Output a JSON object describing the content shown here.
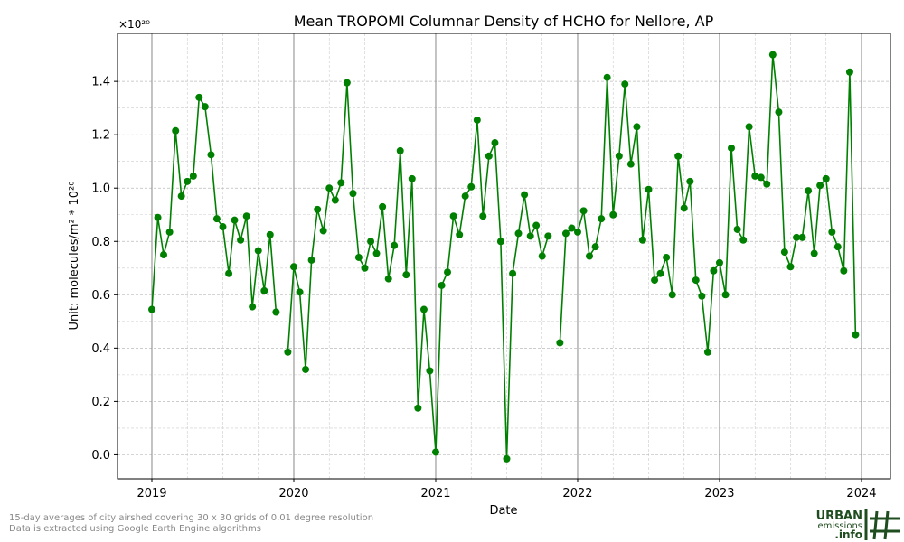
{
  "chart_data": {
    "type": "line",
    "title": "Mean TROPOMI Columnar Density of HCHO for Nellore, AP",
    "xlabel": "Date",
    "ylabel": "Unit: molecules/m² * 10²⁰",
    "y_multiplier": "×10²⁰",
    "x": [
      2019.0,
      2019.042,
      2019.083,
      2019.125,
      2019.167,
      2019.208,
      2019.25,
      2019.292,
      2019.333,
      2019.375,
      2019.417,
      2019.458,
      2019.5,
      2019.542,
      2019.583,
      2019.625,
      2019.667,
      2019.708,
      2019.75,
      2019.792,
      2019.833,
      2019.875,
      2019.917,
      2019.958,
      2020.0,
      2020.042,
      2020.083,
      2020.125,
      2020.167,
      2020.208,
      2020.25,
      2020.292,
      2020.333,
      2020.375,
      2020.417,
      2020.458,
      2020.5,
      2020.542,
      2020.583,
      2020.625,
      2020.667,
      2020.708,
      2020.75,
      2020.792,
      2020.833,
      2020.875,
      2020.917,
      2020.958,
      2021.0,
      2021.042,
      2021.083,
      2021.125,
      2021.167,
      2021.208,
      2021.25,
      2021.292,
      2021.333,
      2021.375,
      2021.417,
      2021.458,
      2021.5,
      2021.542,
      2021.583,
      2021.625,
      2021.667,
      2021.708,
      2021.75,
      2021.792,
      2021.833,
      2021.875,
      2021.917,
      2021.958,
      2022.0,
      2022.042,
      2022.083,
      2022.125,
      2022.167,
      2022.208,
      2022.25,
      2022.292,
      2022.333,
      2022.375,
      2022.417,
      2022.458,
      2022.5,
      2022.542,
      2022.583,
      2022.625,
      2022.667,
      2022.708,
      2022.75,
      2022.792,
      2022.833,
      2022.875,
      2022.917,
      2022.958,
      2023.0,
      2023.042,
      2023.083,
      2023.125,
      2023.167,
      2023.208,
      2023.25,
      2023.292,
      2023.333,
      2023.375,
      2023.417,
      2023.458,
      2023.5,
      2023.542,
      2023.583,
      2023.625,
      2023.667,
      2023.708,
      2023.75,
      2023.792,
      2023.833,
      2023.875,
      2023.917,
      2023.958
    ],
    "series": [
      {
        "name": "HCHO",
        "color": "#008000",
        "values": [
          0.545,
          0.89,
          0.75,
          0.835,
          1.215,
          0.97,
          1.025,
          1.045,
          1.34,
          1.305,
          1.125,
          0.885,
          0.855,
          0.68,
          0.88,
          0.805,
          0.895,
          0.555,
          0.765,
          0.615,
          0.825,
          0.535,
          null,
          0.385,
          0.705,
          0.61,
          0.32,
          0.73,
          0.92,
          0.84,
          1.0,
          0.955,
          1.02,
          1.395,
          0.98,
          0.74,
          0.7,
          0.8,
          0.755,
          0.93,
          0.66,
          0.785,
          1.14,
          0.675,
          1.035,
          0.175,
          0.545,
          0.315,
          0.01,
          0.635,
          0.685,
          0.895,
          0.825,
          0.97,
          1.005,
          1.255,
          0.895,
          1.12,
          1.17,
          0.8,
          -0.015,
          0.68,
          0.83,
          0.975,
          0.82,
          0.86,
          0.745,
          0.82,
          null,
          0.42,
          0.83,
          0.85,
          0.835,
          0.915,
          0.745,
          0.78,
          0.885,
          1.415,
          0.9,
          1.12,
          1.39,
          1.09,
          1.23,
          0.805,
          0.995,
          0.655,
          0.68,
          0.74,
          0.6,
          1.12,
          0.925,
          1.025,
          0.655,
          0.595,
          0.385,
          0.69,
          0.72,
          0.6,
          1.15,
          0.845,
          0.805,
          1.23,
          1.045,
          1.04,
          1.015,
          1.5,
          1.285,
          0.76,
          0.705,
          0.815,
          0.815,
          0.99,
          0.755,
          1.01,
          1.035,
          0.835,
          0.78,
          0.69,
          1.435,
          0.45
        ]
      }
    ],
    "xlim": [
      2018.758,
      2024.204
    ],
    "xticks": [
      2019,
      2020,
      2021,
      2022,
      2023,
      2024
    ],
    "ylim": [
      -0.09,
      1.58
    ],
    "yticks": [
      {
        "value": 0,
        "label": "0.0"
      },
      0.2,
      0.4,
      0.6,
      0.8,
      {
        "value": 1,
        "label": "1.0"
      },
      1.2,
      1.4
    ],
    "grid": true,
    "footnotes": [
      "15-day averages of city airshed covering 30 x 30 grids of 0.01 degree resolution",
      "Data is extracted using Google Earth Engine algorithms"
    ],
    "logo": [
      "URBAN",
      "emissions",
      ".info"
    ]
  }
}
